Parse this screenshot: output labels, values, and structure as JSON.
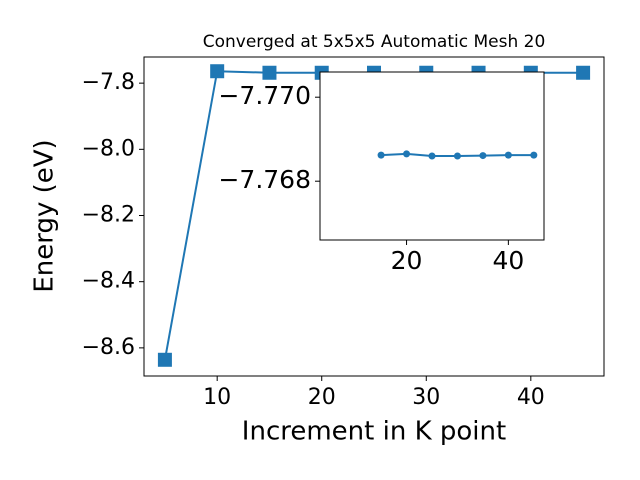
{
  "chart_data": [
    {
      "type": "line",
      "title": "Converged at 5x5x5 Automatic Mesh 20",
      "x_label": "Increment in K point",
      "y_label": "Energy (eV)",
      "x": [
        5,
        10,
        15,
        20,
        25,
        30,
        35,
        40,
        45
      ],
      "series": [
        {
          "color": "#1f77b4",
          "marker": "square",
          "values": [
            -8.636,
            -7.764,
            -7.7686,
            -7.76865,
            -7.7686,
            -7.7686,
            -7.76861,
            -7.76862,
            -7.76862
          ]
        }
      ],
      "xlim": [
        3,
        47
      ],
      "ylim": [
        -8.685,
        -7.721
      ],
      "xticks": [
        10,
        20,
        30,
        40
      ],
      "yticks": [
        {
          "value": -7.8,
          "label": "−7.8"
        },
        {
          "value": -8.0,
          "label": "−8.0"
        },
        {
          "value": -8.2,
          "label": "−8.2"
        },
        {
          "value": -8.4,
          "label": "−8.4"
        },
        {
          "value": -8.6,
          "label": "−8.6"
        }
      ]
    },
    {
      "type": "line",
      "x": [
        15,
        20,
        25,
        30,
        35,
        40,
        45
      ],
      "series": [
        {
          "color": "#1f77b4",
          "marker": "circle",
          "values": [
            -7.76862,
            -7.76865,
            -7.7686,
            -7.7686,
            -7.76861,
            -7.76862,
            -7.76862
          ]
        }
      ],
      "xlim": [
        3,
        47
      ],
      "ylim": [
        -7.7666,
        -7.7706
      ],
      "xticks": [
        20,
        40
      ],
      "yticks": [
        {
          "value": -7.77,
          "label": "−7.770"
        },
        {
          "value": -7.768,
          "label": "−7.768"
        }
      ]
    }
  ]
}
